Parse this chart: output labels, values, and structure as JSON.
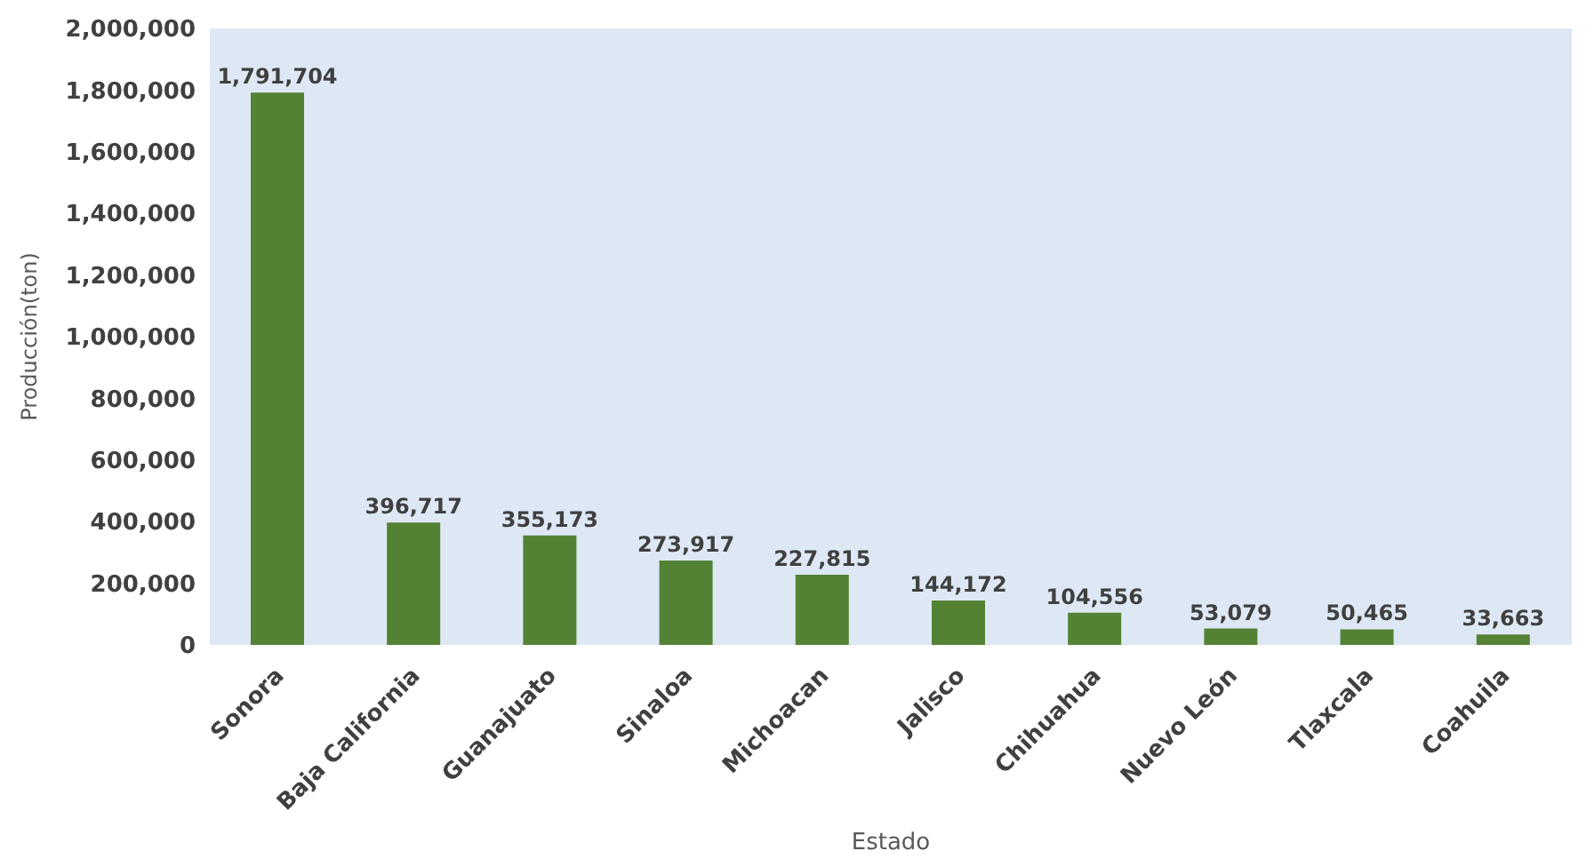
{
  "chart_data": {
    "type": "bar",
    "xlabel": "Estado",
    "ylabel": "Producción(ton)",
    "categories": [
      "Sonora",
      "Baja California",
      "Guanajuato",
      "Sinaloa",
      "Michoacan",
      "Jalisco",
      "Chihuahua",
      "Nuevo León",
      "Tlaxcala",
      "Coahuila"
    ],
    "values": [
      1791704,
      396717,
      355173,
      273917,
      227815,
      144172,
      104556,
      53079,
      50465,
      33663
    ],
    "value_labels": [
      "1,791,704",
      "396,717",
      "355,173",
      "273,917",
      "227,815",
      "144,172",
      "104,556",
      "53,079",
      "50,465",
      "33,663"
    ],
    "color": "#548235",
    "ylim": [
      0,
      2000000
    ],
    "yticks": [
      0,
      {
        "value": 200000,
        "label": "200,000"
      },
      {
        "value": 400000,
        "label": "400,000"
      },
      {
        "value": 600000,
        "label": "600,000"
      },
      {
        "value": 800000,
        "label": "800,000"
      },
      {
        "value": 1000000,
        "label": "1,000,000"
      },
      {
        "value": 1200000,
        "label": "1,200,000"
      },
      {
        "value": 1400000,
        "label": "1,400,000"
      },
      {
        "value": 1600000,
        "label": "1,600,000"
      },
      {
        "value": 1800000,
        "label": "1,800,000"
      },
      {
        "value": 2000000,
        "label": "2,000,000"
      }
    ],
    "grid": false
  }
}
